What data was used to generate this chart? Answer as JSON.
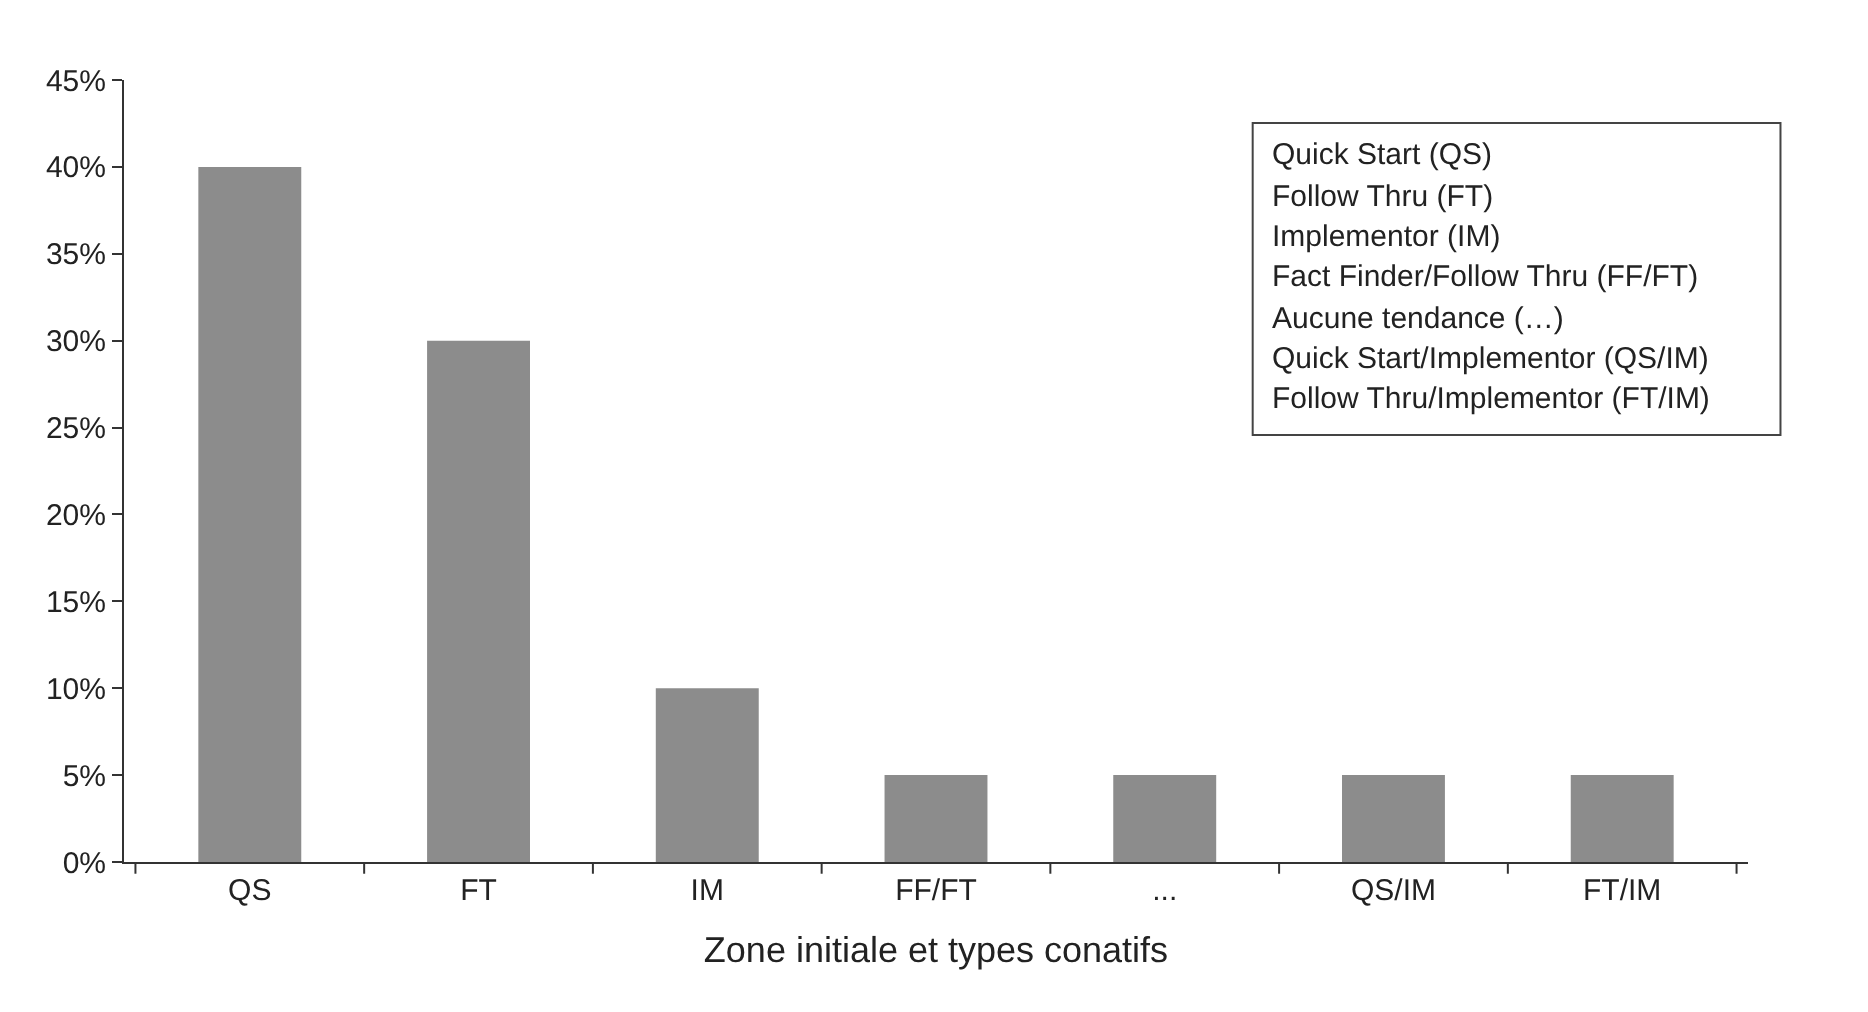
{
  "chart_data": {
    "type": "bar",
    "xlabel": "Zone initiale et types conatifs",
    "categories": [
      "QS",
      "FT",
      "IM",
      "FF/FT",
      "...",
      "QS/IM",
      "FT/IM"
    ],
    "values": [
      40,
      30,
      10,
      5,
      5,
      5,
      5
    ],
    "color": "#8c8c8c",
    "ylim": [
      0,
      45
    ],
    "yticks": [
      {
        "value": 0,
        "label": "0%"
      },
      {
        "value": 5,
        "label": "5%"
      },
      {
        "value": 10,
        "label": "10%"
      },
      {
        "value": 15,
        "label": "15%"
      },
      {
        "value": 20,
        "label": "20%"
      },
      {
        "value": 25,
        "label": "25%"
      },
      {
        "value": 30,
        "label": "30%"
      },
      {
        "value": 35,
        "label": "35%"
      },
      {
        "value": 40,
        "label": "40%"
      },
      {
        "value": 45,
        "label": "45%"
      }
    ],
    "grid": false,
    "annotations": [
      "Quick Start (QS)",
      "Follow Thru (FT)",
      "Implementor (IM)",
      "Fact Finder/Follow Thru (FF/FT)",
      "Aucune tendance (…)",
      "Quick Start/Implementor (QS/IM)",
      "Follow Thru/Implementor (FT/IM)"
    ]
  }
}
